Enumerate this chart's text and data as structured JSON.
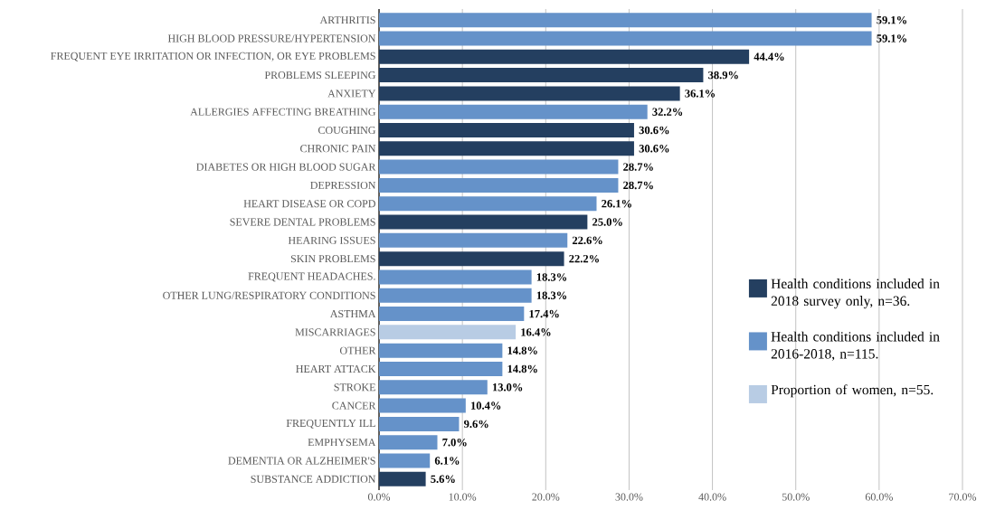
{
  "chart_data": {
    "type": "bar",
    "orientation": "horizontal",
    "categories": [
      "ARTHRITIS",
      "HIGH BLOOD PRESSURE/HYPERTENSION",
      "FREQUENT EYE IRRITATION OR INFECTION, OR EYE PROBLEMS",
      "PROBLEMS SLEEPING",
      "ANXIETY",
      "ALLERGIES AFFECTING BREATHING",
      "COUGHING",
      "CHRONIC PAIN",
      "DIABETES OR HIGH BLOOD SUGAR",
      "DEPRESSION",
      "HEART DISEASE OR COPD",
      "SEVERE DENTAL PROBLEMS",
      "HEARING ISSUES",
      "SKIN PROBLEMS",
      "FREQUENT HEADACHES.",
      "OTHER LUNG/RESPIRATORY CONDITIONS",
      "ASTHMA",
      "MISCARRIAGES",
      "OTHER",
      "HEART ATTACK",
      "STROKE",
      "CANCER",
      "FREQUENTLY ILL",
      "EMPHYSEMA",
      "DEMENTIA OR ALZHEIMER'S",
      "SUBSTANCE ADDICTION"
    ],
    "series": [
      {
        "name": "Health conditions included in 2018 survey only, n=36.",
        "color": "#243f60",
        "values": [
          null,
          null,
          44.4,
          38.9,
          36.1,
          null,
          30.6,
          30.6,
          null,
          null,
          null,
          25.0,
          null,
          22.2,
          null,
          null,
          null,
          null,
          null,
          null,
          null,
          null,
          null,
          null,
          null,
          5.6
        ],
        "value_labels": [
          null,
          null,
          "44.4%",
          "38.9%",
          "36.1%",
          null,
          "30.6%",
          "30.6%",
          null,
          null,
          null,
          "25.0%",
          null,
          "22.2%",
          null,
          null,
          null,
          null,
          null,
          null,
          null,
          null,
          null,
          null,
          null,
          "5.6%"
        ]
      },
      {
        "name": "Health conditions included in 2016-2018, n=115.",
        "color": "#6592c9",
        "values": [
          59.1,
          59.1,
          null,
          null,
          null,
          32.2,
          null,
          null,
          28.7,
          28.7,
          26.1,
          null,
          22.6,
          null,
          18.3,
          18.3,
          17.4,
          null,
          14.8,
          14.8,
          13.0,
          10.4,
          9.6,
          7.0,
          6.1,
          null
        ],
        "value_labels": [
          "59.1%",
          "59.1%",
          null,
          null,
          null,
          "32.2%",
          null,
          null,
          "28.7%",
          "28.7%",
          "26.1%",
          null,
          "22.6%",
          null,
          "18.3%",
          "18.3%",
          "17.4%",
          null,
          "14.8%",
          "14.8%",
          "13.0%",
          "10.4%",
          "9.6%",
          "7.0%",
          "6.1%",
          null
        ]
      },
      {
        "name": "Proportion of women, n=55.",
        "color": "#b8cce4",
        "values": [
          null,
          null,
          null,
          null,
          null,
          null,
          null,
          null,
          null,
          null,
          null,
          null,
          null,
          null,
          null,
          null,
          null,
          16.4,
          null,
          null,
          null,
          null,
          null,
          null,
          null,
          null
        ],
        "value_labels": [
          null,
          null,
          null,
          null,
          null,
          null,
          null,
          null,
          null,
          null,
          null,
          null,
          null,
          null,
          null,
          null,
          null,
          "16.4%",
          null,
          null,
          null,
          null,
          null,
          null,
          null,
          null
        ]
      }
    ],
    "xlim": [
      0,
      70
    ],
    "xticks": [
      {
        "value": 0,
        "label": "0.0%"
      },
      {
        "value": 10,
        "label": "10.0%"
      },
      {
        "value": 20,
        "label": "20.0%"
      },
      {
        "value": 30,
        "label": "30.0%"
      },
      {
        "value": 40,
        "label": "40.0%"
      },
      {
        "value": 50,
        "label": "50.0%"
      },
      {
        "value": 60,
        "label": "60.0%"
      },
      {
        "value": 70,
        "label": "70.0%"
      }
    ],
    "grid": "x",
    "legend": "bottom right"
  }
}
